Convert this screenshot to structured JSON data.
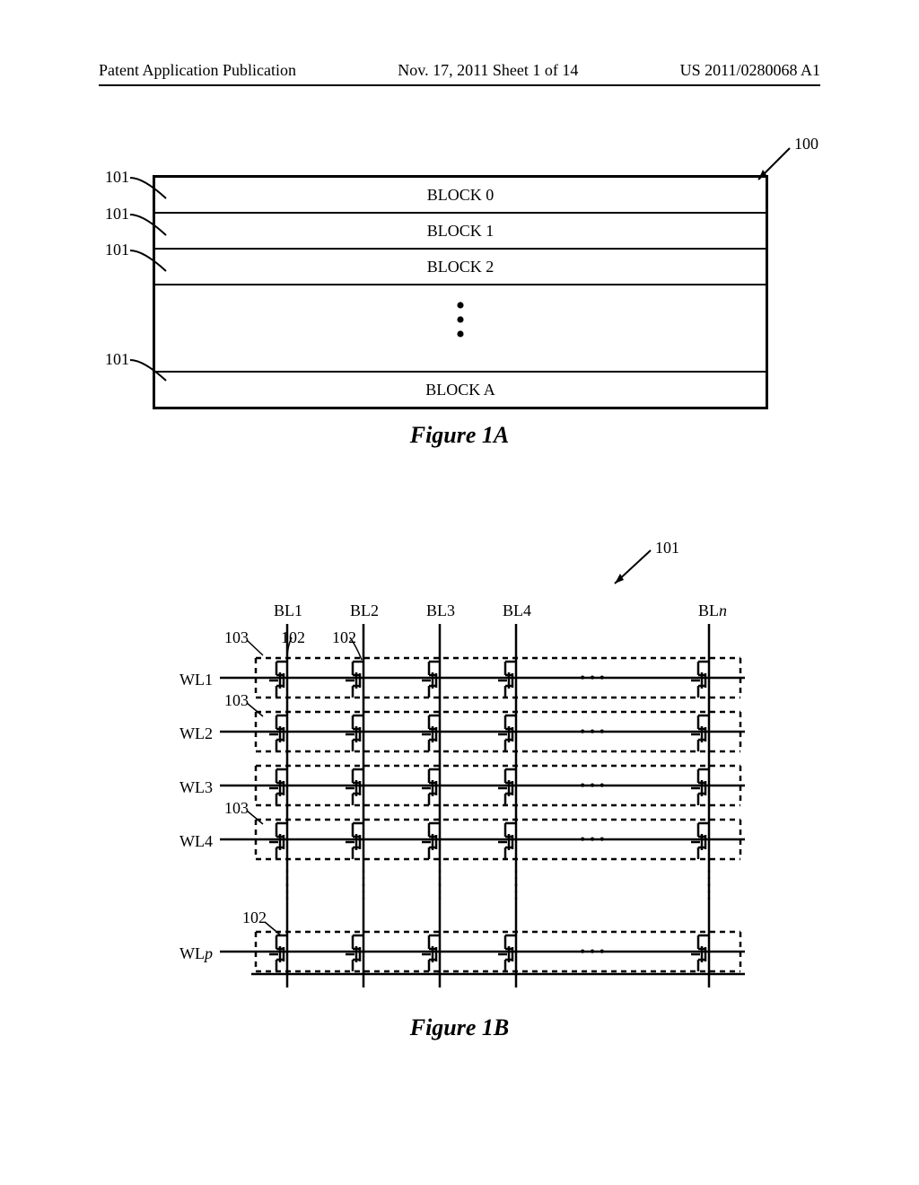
{
  "header": {
    "left": "Patent Application Publication",
    "center": "Nov. 17, 2011  Sheet 1 of 14",
    "right": "US 2011/0280068 A1"
  },
  "fig1a": {
    "ref_100": "100",
    "ref_101": "101",
    "blocks": [
      "BLOCK 0",
      "BLOCK 1",
      "BLOCK 2",
      "BLOCK A"
    ],
    "caption": "Figure 1A"
  },
  "fig1b": {
    "ref_101": "101",
    "ref_102": "102",
    "ref_103": "103",
    "bl_labels": [
      "BL1",
      "BL2",
      "BL3",
      "BL4",
      "BLn"
    ],
    "wl_labels": [
      "WL1",
      "WL2",
      "WL3",
      "WL4",
      "WLp"
    ],
    "italic_n": "n",
    "italic_p": "p",
    "caption": "Figure 1B",
    "bl_x": [
      150,
      235,
      320,
      405,
      620
    ],
    "wl_y": [
      115,
      175,
      235,
      295,
      420
    ],
    "line_color": "#000000",
    "stroke_width": 2.5,
    "dash": "6,5"
  }
}
